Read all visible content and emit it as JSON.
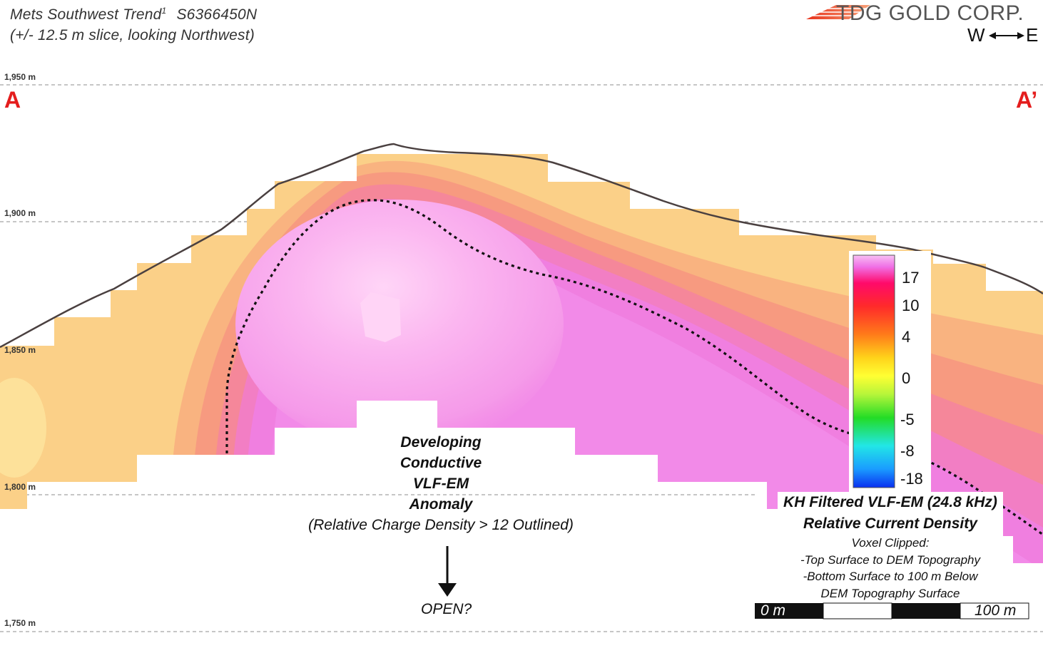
{
  "title": {
    "line1": "Mets Southwest Trend",
    "superscript": "1",
    "northing": "S6366450N",
    "line2": "(+/- 12.5 m slice, looking Northwest)"
  },
  "logo": {
    "text": "TDG GOLD CORP."
  },
  "direction": {
    "west": "W",
    "east": "E"
  },
  "section_ends": {
    "start": "A",
    "end": "A’"
  },
  "elevation_labels": [
    "1,950 m",
    "1,900 m",
    "1,850 m",
    "1,800 m",
    "1,750 m"
  ],
  "anomaly": {
    "lines": [
      "Developing",
      "Conductive",
      "VLF-EM",
      "Anomaly"
    ],
    "criteria": "(Relative Charge Density > 12 Outlined)",
    "open_label": "OPEN?"
  },
  "legend": {
    "title_line1": "KH Filtered VLF-EM (24.8 kHz)",
    "title_line2": "Relative Current Density",
    "note_lines": [
      "Voxel Clipped:",
      "-Top Surface to DEM Topography",
      "-Bottom Surface to 100 m Below",
      "DEM Topography Surface"
    ],
    "ticks": [
      "17",
      "10",
      "4",
      "0",
      "-5",
      "-8",
      "-18"
    ],
    "colors": [
      "#f7b7f2",
      "#ee77e6",
      "#ff0a6a",
      "#ff2a2a",
      "#ff7a1a",
      "#ffd21a",
      "#ffff33",
      "#9ef43a",
      "#23dc26",
      "#22e6e6",
      "#1a9cff",
      "#0a3cf2"
    ]
  },
  "scale_bar": {
    "left_label": "0 m",
    "right_label": "100 m"
  },
  "colors": {
    "topography_line": "#4a4040",
    "anomaly_outline": "#111111",
    "endpoint_label": "#e41d1d",
    "grid_line": "#8c8c8c"
  }
}
